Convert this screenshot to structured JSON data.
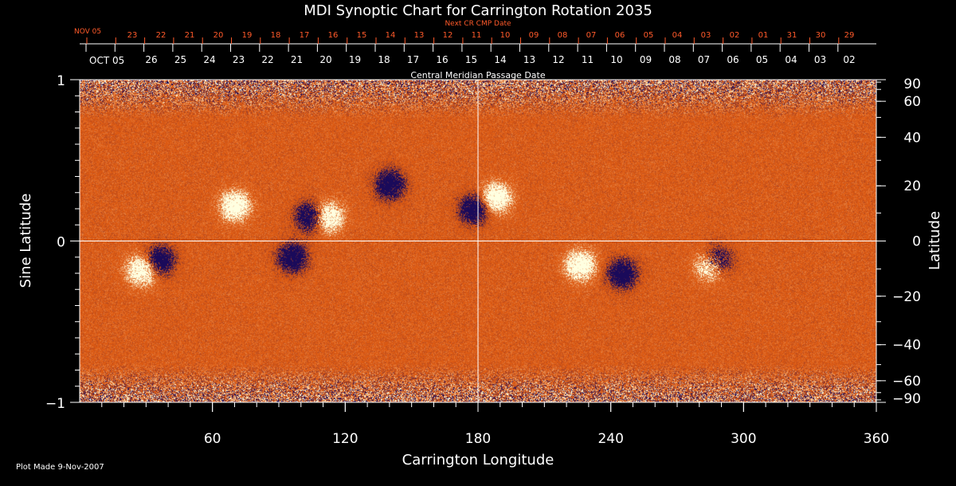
{
  "chart_data": {
    "type": "heatmap",
    "title": "MDI Synoptic Chart for Carrington Rotation 2035",
    "xlabel": "Carrington Longitude",
    "ylabel": "Sine Latitude",
    "ylabel_right": "Latitude",
    "xlim": [
      0,
      360
    ],
    "ylim": [
      -1,
      1
    ],
    "x_ticks": [
      "60",
      "120",
      "180",
      "240",
      "300",
      "360"
    ],
    "x_tick_values": [
      60,
      120,
      180,
      240,
      300,
      360
    ],
    "y_ticks_left": [
      "1",
      "0",
      "−1"
    ],
    "y_tick_values_left": [
      1,
      0,
      -1
    ],
    "y_ticks_right": [
      "90",
      "60",
      "40",
      "20",
      "0",
      "−20",
      "−40",
      "−60",
      "−90"
    ],
    "y_tick_values_right_deg": [
      90,
      60,
      40,
      20,
      0,
      -20,
      -40,
      -60,
      -90
    ],
    "top_axis_label": "Central Meridian Passage Date",
    "cmp_month_label": "OCT 05",
    "cmp_dates": [
      "26",
      "25",
      "24",
      "23",
      "22",
      "21",
      "20",
      "19",
      "18",
      "17",
      "16",
      "15",
      "14",
      "13",
      "12",
      "11",
      "10",
      "09",
      "08",
      "07",
      "06",
      "05",
      "04",
      "03",
      "02"
    ],
    "next_cr_label": "Next CR CMP Date",
    "next_cr_month_label": "NOV 05",
    "next_cr_dates": [
      "23",
      "22",
      "21",
      "20",
      "19",
      "18",
      "17",
      "16",
      "15",
      "14",
      "13",
      "12",
      "11",
      "10",
      "09",
      "08",
      "07",
      "06",
      "05",
      "04",
      "03",
      "02",
      "01",
      "31",
      "30",
      "29"
    ],
    "grid_lines": {
      "longitude": 180,
      "sine_latitude": 0
    },
    "features": [
      {
        "type": "positive",
        "lon": 226,
        "sinlat": -0.15
      },
      {
        "type": "negative",
        "lon": 245,
        "sinlat": -0.2
      },
      {
        "type": "negative",
        "lon": 288,
        "sinlat": -0.12
      },
      {
        "type": "positive",
        "lon": 285,
        "sinlat": -0.15
      },
      {
        "type": "negative",
        "lon": 178,
        "sinlat": 0.2
      },
      {
        "type": "positive",
        "lon": 188,
        "sinlat": 0.27
      },
      {
        "type": "negative",
        "lon": 104,
        "sinlat": 0.15
      },
      {
        "type": "positive",
        "lon": 112,
        "sinlat": 0.15
      },
      {
        "type": "positive",
        "lon": 70,
        "sinlat": 0.22
      },
      {
        "type": "negative",
        "lon": 140,
        "sinlat": 0.35
      },
      {
        "type": "negative",
        "lon": 36,
        "sinlat": -0.12
      },
      {
        "type": "positive",
        "lon": 28,
        "sinlat": -0.18
      },
      {
        "type": "negative",
        "lon": 96,
        "sinlat": -0.1
      }
    ],
    "colors": {
      "background": "#dd5a12",
      "positive": "#ffffe0",
      "negative": "#1a0a5a",
      "tick_text": "#ffffff",
      "next_cr_text": "#ff5a2a"
    }
  },
  "footer": {
    "plot_made": "Plot Made  9-Nov-2007"
  }
}
